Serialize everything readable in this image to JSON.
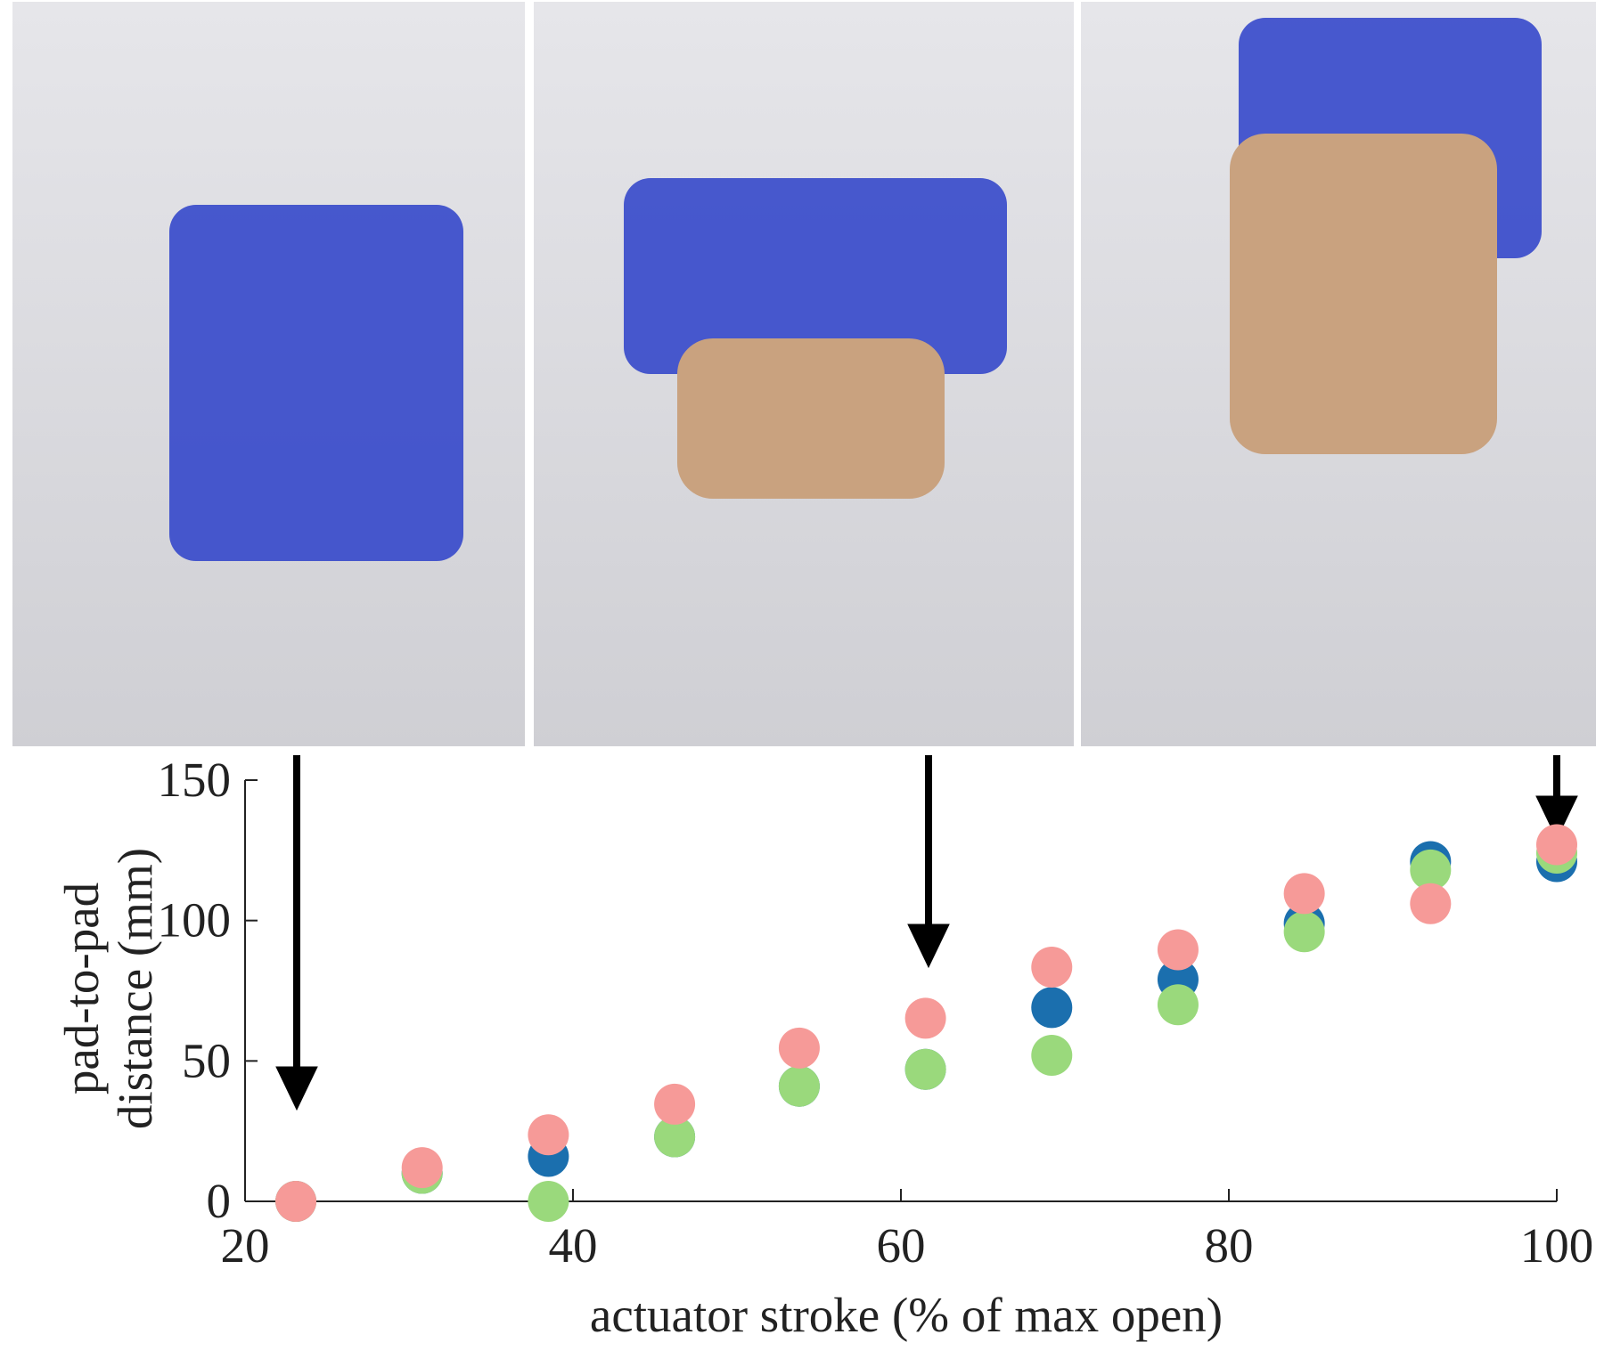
{
  "chart_data": {
    "type": "scatter",
    "xlabel": "actuator stroke (% of max open)",
    "ylabel": [
      "pad-to-pad",
      "distance (mm)"
    ],
    "xlim": [
      20,
      100
    ],
    "xticks": [
      20,
      40,
      60,
      80,
      100
    ],
    "ylim": [
      0,
      150
    ],
    "yticks": [
      0,
      50,
      100,
      150
    ],
    "x": [
      23.1,
      30.8,
      38.5,
      46.2,
      53.8,
      61.5,
      69.2,
      76.9,
      84.6,
      92.3,
      100
    ],
    "series": [
      {
        "color": "#1b6fae",
        "values": [
          0,
          10,
          16,
          23,
          41,
          47,
          69,
          79,
          99,
          121,
          121
        ]
      },
      {
        "color": "#9ad97c",
        "values": [
          0,
          10,
          0,
          23,
          41,
          47,
          52,
          70,
          96,
          118,
          124
        ]
      },
      {
        "color": "#f69a98",
        "values": [
          0,
          12,
          23.7,
          34.6,
          54.6,
          65.2,
          83.4,
          89.6,
          109.6,
          106,
          127
        ]
      }
    ]
  }
}
